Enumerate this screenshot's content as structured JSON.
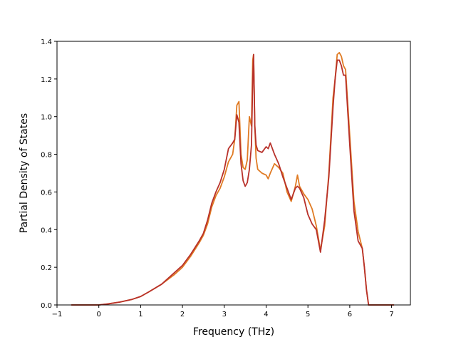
{
  "chart_data": {
    "type": "line",
    "title": "",
    "xlabel": "Frequency (THz)",
    "ylabel": "Partial Density of States",
    "xlim": [
      -1.0,
      7.45
    ],
    "ylim": [
      0.0,
      1.4
    ],
    "xticks": [
      -1,
      0,
      1,
      2,
      3,
      4,
      5,
      6,
      7
    ],
    "xtick_labels": [
      "−1",
      "0",
      "1",
      "2",
      "3",
      "4",
      "5",
      "6",
      "7"
    ],
    "yticks": [
      0.0,
      0.2,
      0.4,
      0.6,
      0.8,
      1.0,
      1.2,
      1.4
    ],
    "ytick_labels": [
      "0.0",
      "0.2",
      "0.4",
      "0.6",
      "0.8",
      "1.0",
      "1.2",
      "1.4"
    ],
    "grid": false,
    "legend": "none",
    "series": [
      {
        "color": "#e07b24",
        "x": [
          -0.65,
          0.0,
          0.2,
          0.5,
          0.8,
          1.0,
          1.2,
          1.5,
          1.8,
          2.0,
          2.2,
          2.4,
          2.5,
          2.6,
          2.7,
          2.8,
          2.9,
          3.0,
          3.1,
          3.2,
          3.25,
          3.3,
          3.35,
          3.4,
          3.45,
          3.5,
          3.55,
          3.6,
          3.65,
          3.68,
          3.7,
          3.73,
          3.76,
          3.8,
          3.9,
          4.0,
          4.05,
          4.1,
          4.2,
          4.3,
          4.4,
          4.5,
          4.6,
          4.7,
          4.75,
          4.8,
          4.9,
          5.0,
          5.1,
          5.2,
          5.3,
          5.4,
          5.5,
          5.6,
          5.65,
          5.7,
          5.75,
          5.8,
          5.85,
          5.9,
          6.0,
          6.1,
          6.2,
          6.3,
          6.35,
          6.4,
          6.45,
          6.5,
          7.05
        ],
        "y": [
          0.0,
          0.0,
          0.005,
          0.015,
          0.03,
          0.045,
          0.07,
          0.11,
          0.16,
          0.2,
          0.26,
          0.33,
          0.37,
          0.43,
          0.52,
          0.58,
          0.62,
          0.68,
          0.76,
          0.8,
          0.88,
          1.06,
          1.08,
          0.8,
          0.73,
          0.72,
          0.77,
          1.0,
          0.95,
          1.3,
          1.33,
          0.95,
          0.78,
          0.72,
          0.7,
          0.69,
          0.67,
          0.7,
          0.75,
          0.73,
          0.7,
          0.6,
          0.55,
          0.63,
          0.69,
          0.63,
          0.59,
          0.56,
          0.51,
          0.42,
          0.29,
          0.42,
          0.7,
          1.1,
          1.2,
          1.33,
          1.34,
          1.32,
          1.27,
          1.25,
          0.9,
          0.55,
          0.39,
          0.3,
          0.2,
          0.08,
          0.0,
          0.0,
          0.0
        ]
      },
      {
        "color": "#b8312a",
        "x": [
          -0.65,
          0.0,
          0.2,
          0.5,
          0.8,
          1.0,
          1.2,
          1.5,
          1.8,
          2.0,
          2.2,
          2.4,
          2.5,
          2.6,
          2.7,
          2.8,
          2.9,
          3.0,
          3.1,
          3.2,
          3.25,
          3.3,
          3.35,
          3.4,
          3.45,
          3.5,
          3.55,
          3.6,
          3.65,
          3.68,
          3.7,
          3.73,
          3.76,
          3.8,
          3.9,
          4.0,
          4.05,
          4.1,
          4.2,
          4.3,
          4.4,
          4.5,
          4.6,
          4.7,
          4.75,
          4.8,
          4.9,
          5.0,
          5.1,
          5.2,
          5.3,
          5.4,
          5.5,
          5.6,
          5.65,
          5.7,
          5.75,
          5.8,
          5.85,
          5.9,
          6.0,
          6.1,
          6.2,
          6.3,
          6.35,
          6.4,
          6.45,
          6.5,
          7.05
        ],
        "y": [
          0.0,
          0.0,
          0.005,
          0.015,
          0.03,
          0.045,
          0.07,
          0.11,
          0.17,
          0.21,
          0.27,
          0.34,
          0.38,
          0.45,
          0.54,
          0.6,
          0.65,
          0.72,
          0.83,
          0.86,
          0.88,
          1.01,
          0.97,
          0.75,
          0.66,
          0.63,
          0.65,
          0.72,
          0.85,
          1.2,
          1.33,
          0.95,
          0.85,
          0.82,
          0.81,
          0.84,
          0.83,
          0.86,
          0.8,
          0.75,
          0.68,
          0.62,
          0.56,
          0.62,
          0.63,
          0.62,
          0.57,
          0.48,
          0.43,
          0.4,
          0.28,
          0.45,
          0.68,
          1.05,
          1.2,
          1.3,
          1.3,
          1.27,
          1.22,
          1.22,
          0.85,
          0.5,
          0.34,
          0.3,
          0.2,
          0.08,
          0.0,
          0.0,
          0.0
        ]
      }
    ]
  }
}
